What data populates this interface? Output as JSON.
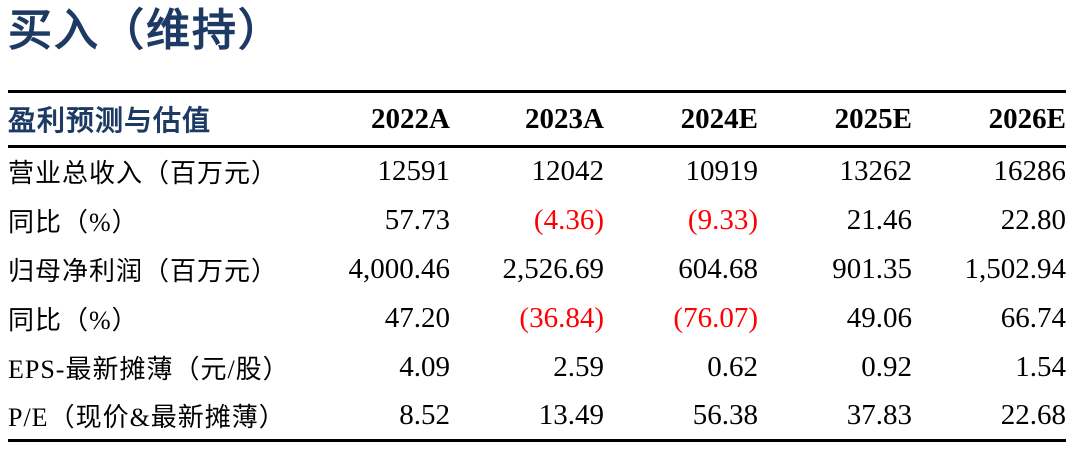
{
  "title": "买入（维持）",
  "colors": {
    "navy": "#1C3A64",
    "negative_red": "#FF0000",
    "text_black": "#000000",
    "rule_black": "#000000"
  },
  "table": {
    "title": "盈利预测与估值",
    "columns": [
      "2022A",
      "2023A",
      "2024E",
      "2025E",
      "2026E"
    ],
    "rows": [
      {
        "label": "营业总收入（百万元）",
        "values": [
          "12591",
          "12042",
          "10919",
          "13262",
          "16286"
        ],
        "red": [
          false,
          false,
          false,
          false,
          false
        ]
      },
      {
        "label": "同比（%）",
        "values": [
          "57.73",
          "(4.36)",
          "(9.33)",
          "21.46",
          "22.80"
        ],
        "red": [
          false,
          true,
          true,
          false,
          false
        ]
      },
      {
        "label": "归母净利润（百万元）",
        "values": [
          "4,000.46",
          "2,526.69",
          "604.68",
          "901.35",
          "1,502.94"
        ],
        "red": [
          false,
          false,
          false,
          false,
          false
        ]
      },
      {
        "label": "同比（%）",
        "values": [
          "47.20",
          "(36.84)",
          "(76.07)",
          "49.06",
          "66.74"
        ],
        "red": [
          false,
          true,
          true,
          false,
          false
        ]
      },
      {
        "label": "EPS-最新摊薄（元/股）",
        "values": [
          "4.09",
          "2.59",
          "0.62",
          "0.92",
          "1.54"
        ],
        "red": [
          false,
          false,
          false,
          false,
          false
        ]
      },
      {
        "label": "P/E（现价&最新摊薄）",
        "values": [
          "8.52",
          "13.49",
          "56.38",
          "37.83",
          "22.68"
        ],
        "red": [
          false,
          false,
          false,
          false,
          false
        ]
      }
    ]
  }
}
